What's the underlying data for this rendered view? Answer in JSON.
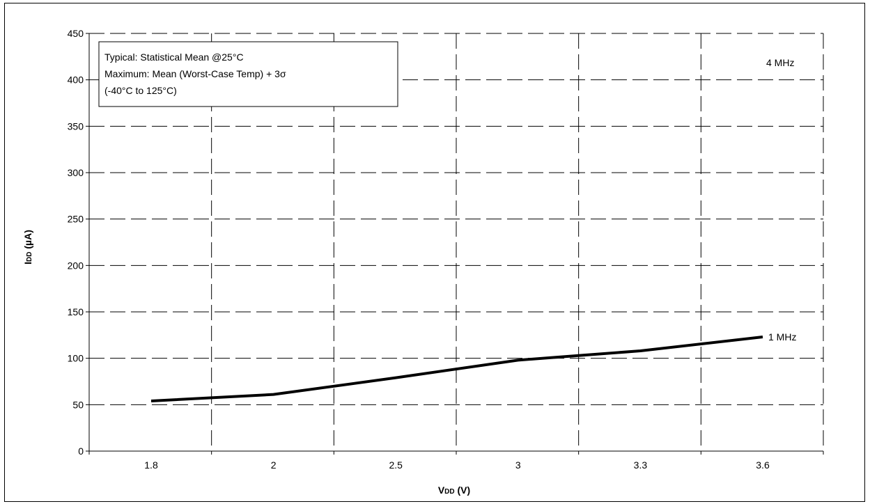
{
  "chart_data": {
    "type": "line",
    "xlabel_main": "V",
    "xlabel_sub": "DD",
    "xlabel_unit": " (V)",
    "ylabel_main": "I",
    "ylabel_sub": "DD",
    "ylabel_unit": " (µA)",
    "ylim": [
      0,
      450
    ],
    "yticks": [
      0,
      50,
      100,
      150,
      200,
      250,
      300,
      350,
      400,
      450
    ],
    "x_categories": [
      "1.8",
      "2",
      "2.5",
      "3",
      "3.3",
      "3.6"
    ],
    "grid": true,
    "annotation_lines": [
      "Typical: Statistical Mean @25°C",
      "Maximum: Mean (Worst-Case Temp) + 3σ",
      "(-40°C to 125°C)"
    ],
    "series": [
      {
        "name": "1 MHz",
        "x": [
          "1.8",
          "2",
          "2.5",
          "3",
          "3.3",
          "3.6"
        ],
        "values": [
          54,
          61,
          79,
          98,
          108,
          123
        ]
      },
      {
        "name": "4 MHz",
        "x": [],
        "values": []
      }
    ],
    "colors": {
      "line": "#000000",
      "grid": "#000000",
      "background": "#ffffff"
    }
  }
}
